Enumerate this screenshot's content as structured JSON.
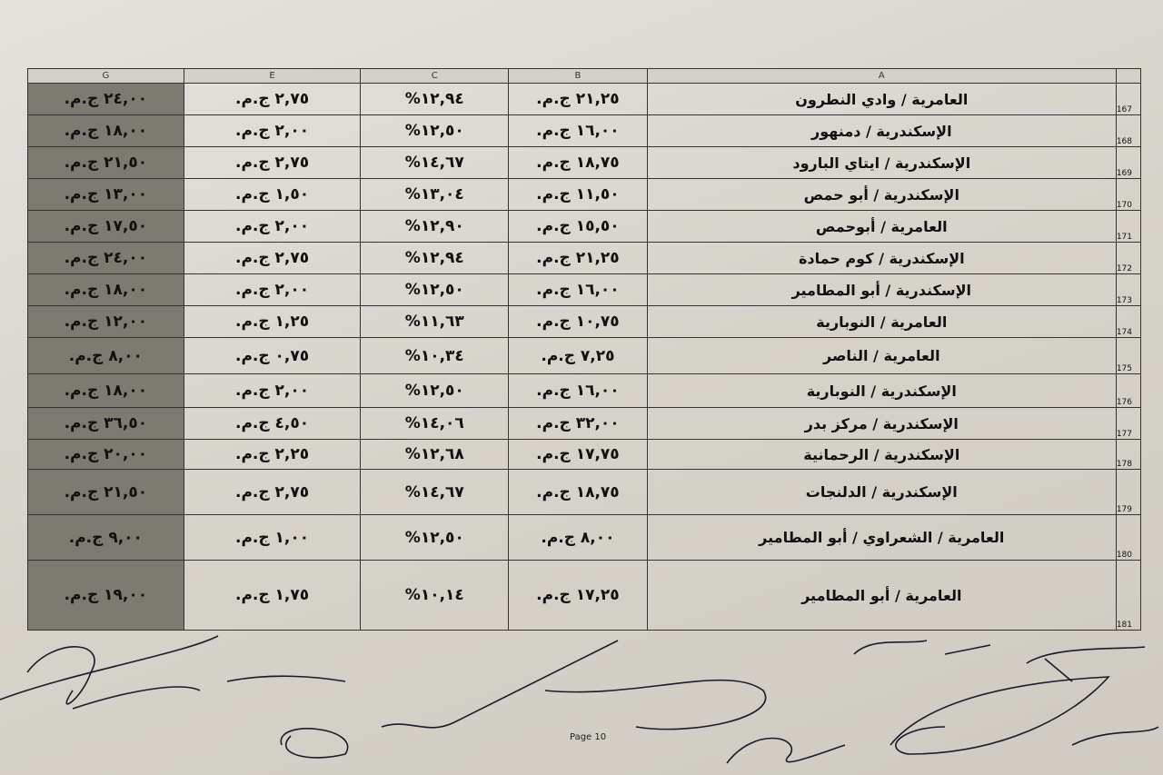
{
  "columns": {
    "g": "G",
    "e": "E",
    "c": "C",
    "b": "B",
    "a": "A"
  },
  "rows": [
    {
      "n": "167",
      "a": "العامرية / وادي النطرون",
      "b": "٢١,٢٥ ج.م.",
      "c": "١٢,٩٤%",
      "e": "٢,٧٥ ج.م.",
      "g": "٢٤,٠٠ ج.م."
    },
    {
      "n": "168",
      "a": "الإسكندرية / دمنهور",
      "b": "١٦,٠٠ ج.م.",
      "c": "١٢,٥٠%",
      "e": "٢,٠٠ ج.م.",
      "g": "١٨,٠٠ ج.م."
    },
    {
      "n": "169",
      "a": "الإسكندرية / ايتاي البارود",
      "b": "١٨,٧٥ ج.م.",
      "c": "١٤,٦٧%",
      "e": "٢,٧٥ ج.م.",
      "g": "٢١,٥٠ ج.م."
    },
    {
      "n": "170",
      "a": "الإسكندرية / أبو حمص",
      "b": "١١,٥٠ ج.م.",
      "c": "١٣,٠٤%",
      "e": "١,٥٠ ج.م.",
      "g": "١٣,٠٠ ج.م."
    },
    {
      "n": "171",
      "a": "العامرية / أبوحمص",
      "b": "١٥,٥٠ ج.م.",
      "c": "١٢,٩٠%",
      "e": "٢,٠٠ ج.م.",
      "g": "١٧,٥٠ ج.م."
    },
    {
      "n": "172",
      "a": "الإسكندرية / كوم حمادة",
      "b": "٢١,٢٥ ج.م.",
      "c": "١٢,٩٤%",
      "e": "٢,٧٥ ج.م.",
      "g": "٢٤,٠٠ ج.م."
    },
    {
      "n": "173",
      "a": "الإسكندرية / أبو المطامير",
      "b": "١٦,٠٠ ج.م.",
      "c": "١٢,٥٠%",
      "e": "٢,٠٠ ج.م.",
      "g": "١٨,٠٠ ج.م."
    },
    {
      "n": "174",
      "a": "العامرية / النوبارية",
      "b": "١٠,٧٥ ج.م.",
      "c": "١١,٦٣%",
      "e": "١,٢٥ ج.م.",
      "g": "١٢,٠٠ ج.م."
    },
    {
      "n": "175",
      "a": "العامرية / الناصر",
      "b": "٧,٢٥ ج.م.",
      "c": "١٠,٣٤%",
      "e": "٠,٧٥ ج.م.",
      "g": "٨,٠٠ ج.م."
    },
    {
      "n": "176",
      "a": "الإسكندرية / النوبارية",
      "b": "١٦,٠٠ ج.م.",
      "c": "١٢,٥٠%",
      "e": "٢,٠٠ ج.م.",
      "g": "١٨,٠٠ ج.م."
    },
    {
      "n": "177",
      "a": "الإسكندرية / مركز بدر",
      "b": "٣٢,٠٠ ج.م.",
      "c": "١٤,٠٦%",
      "e": "٤,٥٠ ج.م.",
      "g": "٣٦,٥٠ ج.م."
    },
    {
      "n": "178",
      "a": "الإسكندرية / الرحمانية",
      "b": "١٧,٧٥ ج.م.",
      "c": "١٢,٦٨%",
      "e": "٢,٢٥ ج.م.",
      "g": "٢٠,٠٠ ج.م."
    },
    {
      "n": "179",
      "a": "الإسكندرية / الدلنجات",
      "b": "١٨,٧٥ ج.م.",
      "c": "١٤,٦٧%",
      "e": "٢,٧٥ ج.م.",
      "g": "٢١,٥٠ ج.م."
    },
    {
      "n": "180",
      "a": "العامرية / الشعراوي / أبو المطامير",
      "b": "٨,٠٠ ج.م.",
      "c": "١٢,٥٠%",
      "e": "١,٠٠ ج.م.",
      "g": "٩,٠٠ ج.م."
    },
    {
      "n": "181",
      "a": "العامرية / أبو المطامير",
      "b": "١٧,٢٥ ج.م.",
      "c": "١٠,١٤%",
      "e": "١,٧٥ ج.م.",
      "g": "١٩,٠٠ ج.م."
    }
  ],
  "footer": {
    "page": "Page 10"
  }
}
